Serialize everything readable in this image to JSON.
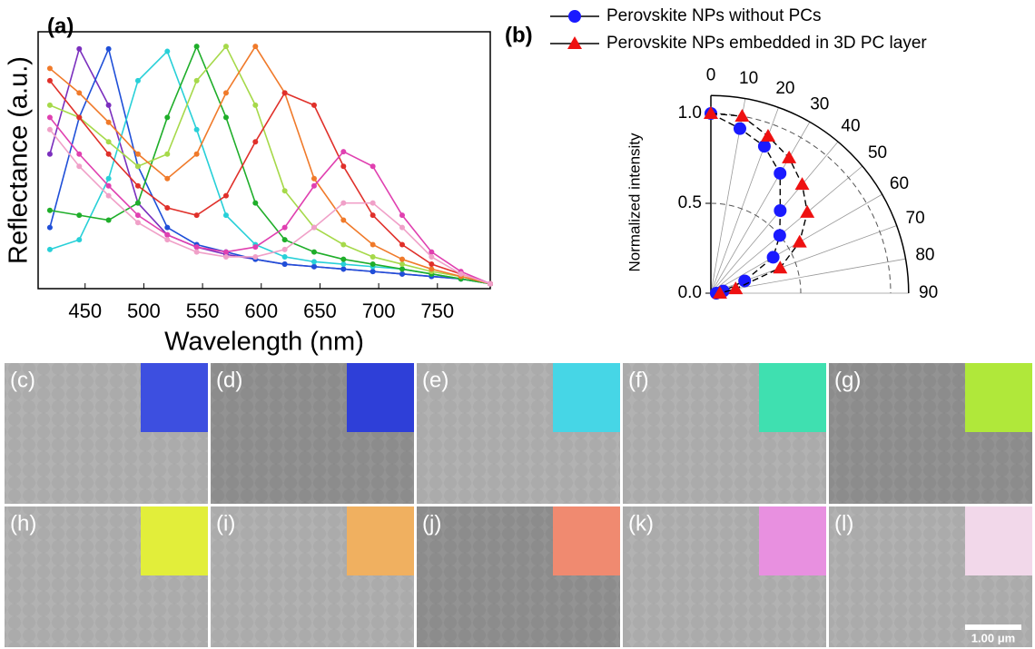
{
  "chart_data": [
    {
      "type": "line",
      "panel_label": "(a)",
      "x_label": "Wavelength (nm)",
      "y_label": "Reflectance (a.u.)",
      "x": [
        420,
        445,
        470,
        495,
        520,
        545,
        570,
        595,
        620,
        645,
        670,
        695,
        720,
        745,
        770,
        795
      ],
      "xlim": [
        410,
        795
      ],
      "xticks": [
        450,
        500,
        550,
        600,
        650,
        700,
        750
      ],
      "ylim": [
        0,
        1.05
      ],
      "series": [
        {
          "color": "#7b2fbe",
          "values": [
            0.55,
            0.98,
            0.75,
            0.35,
            0.22,
            0.17,
            0.14,
            0.12,
            0.1,
            0.09,
            0.08,
            0.07,
            0.06,
            0.05,
            0.04,
            0.02
          ]
        },
        {
          "color": "#1f4fd8",
          "values": [
            0.25,
            0.7,
            0.98,
            0.5,
            0.25,
            0.18,
            0.15,
            0.12,
            0.1,
            0.09,
            0.08,
            0.07,
            0.06,
            0.05,
            0.04,
            0.02
          ]
        },
        {
          "color": "#28d0d8",
          "values": [
            0.16,
            0.2,
            0.45,
            0.85,
            0.97,
            0.65,
            0.3,
            0.18,
            0.13,
            0.11,
            0.1,
            0.09,
            0.08,
            0.06,
            0.04,
            0.02
          ]
        },
        {
          "color": "#1fae2a",
          "values": [
            0.32,
            0.3,
            0.28,
            0.35,
            0.7,
            0.99,
            0.7,
            0.35,
            0.2,
            0.15,
            0.12,
            0.1,
            0.08,
            0.06,
            0.04,
            0.02
          ]
        },
        {
          "color": "#a6d94a",
          "values": [
            0.75,
            0.7,
            0.6,
            0.5,
            0.55,
            0.85,
            0.99,
            0.75,
            0.4,
            0.25,
            0.18,
            0.13,
            0.1,
            0.07,
            0.05,
            0.02
          ]
        },
        {
          "color": "#f07a2a",
          "values": [
            0.9,
            0.8,
            0.68,
            0.55,
            0.45,
            0.55,
            0.8,
            0.99,
            0.8,
            0.45,
            0.28,
            0.18,
            0.12,
            0.08,
            0.05,
            0.02
          ]
        },
        {
          "color": "#e0302a",
          "values": [
            0.85,
            0.7,
            0.55,
            0.42,
            0.33,
            0.3,
            0.38,
            0.6,
            0.8,
            0.75,
            0.5,
            0.3,
            0.18,
            0.1,
            0.06,
            0.02
          ]
        },
        {
          "color": "#e040b0",
          "values": [
            0.7,
            0.55,
            0.42,
            0.3,
            0.22,
            0.17,
            0.15,
            0.17,
            0.25,
            0.42,
            0.56,
            0.5,
            0.3,
            0.15,
            0.07,
            0.02
          ]
        },
        {
          "color": "#f0a0c8",
          "values": [
            0.65,
            0.5,
            0.38,
            0.27,
            0.2,
            0.15,
            0.13,
            0.13,
            0.16,
            0.25,
            0.35,
            0.35,
            0.25,
            0.13,
            0.06,
            0.02
          ]
        }
      ]
    },
    {
      "type": "polar",
      "panel_label": "(b)",
      "r_label": "Normalized intensity",
      "theta": [
        0,
        10,
        20,
        30,
        40,
        50,
        60,
        70,
        80,
        90
      ],
      "thetaticks": [
        0,
        10,
        20,
        30,
        40,
        50,
        60,
        70,
        80,
        90
      ],
      "rlim": [
        0,
        1.1
      ],
      "rticks": [
        {
          "value": 0,
          "label": "0.0"
        },
        {
          "value": 0.5,
          "label": "0.5"
        },
        {
          "value": 1,
          "label": "1.0"
        }
      ],
      "series": [
        {
          "name": "Perovskite NPs without PCs",
          "color": "#1a1aff",
          "marker": "circle",
          "values": [
            1.0,
            0.93,
            0.87,
            0.77,
            0.6,
            0.5,
            0.4,
            0.2,
            0.07,
            0.03
          ]
        },
        {
          "name": "Perovskite NPs embedded in 3D PC layer",
          "color": "#ee1111",
          "marker": "triangle",
          "values": [
            1.0,
            1.0,
            0.93,
            0.87,
            0.79,
            0.7,
            0.57,
            0.41,
            0.14,
            0.05
          ]
        }
      ]
    }
  ],
  "sem_panels": [
    {
      "label": "(c)",
      "inset_color": "#3d4fe0"
    },
    {
      "label": "(d)",
      "inset_color": "#2e3fd8"
    },
    {
      "label": "(e)",
      "inset_color": "#46d6e6"
    },
    {
      "label": "(f)",
      "inset_color": "#3fe0b0"
    },
    {
      "label": "(g)",
      "inset_color": "#b0e83a"
    },
    {
      "label": "(h)",
      "inset_color": "#e2ee3a"
    },
    {
      "label": "(i)",
      "inset_color": "#f0b060"
    },
    {
      "label": "(j)",
      "inset_color": "#f08a70"
    },
    {
      "label": "(k)",
      "inset_color": "#e890e0"
    },
    {
      "label": "(l)",
      "inset_color": "#f2d8ea"
    }
  ],
  "scale_bar": "1.00 μm"
}
